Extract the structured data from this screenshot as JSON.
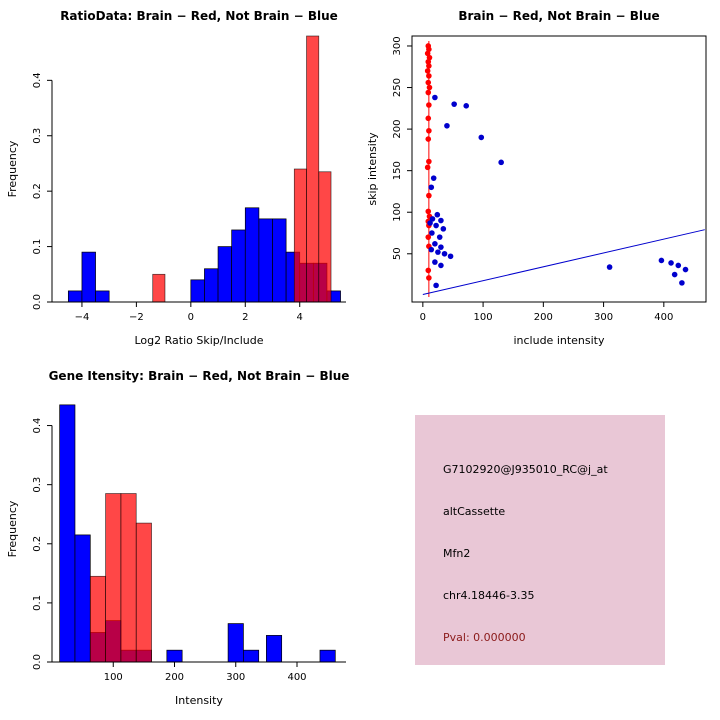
{
  "panels": {
    "info_box": {
      "bg": "#e9c7d6",
      "lines": [
        {
          "text": "G7102920@J935010_RC@j_at",
          "color": "#000000"
        },
        {
          "text": "altCassette",
          "color": "#000000"
        },
        {
          "text": "Mfn2",
          "color": "#000000"
        },
        {
          "text": "chr4.18446-3.35",
          "color": "#000000"
        },
        {
          "text": "Pval: 0.000000",
          "color": "#8b1a1a"
        }
      ]
    }
  },
  "chart_data": [
    {
      "type": "bar",
      "subtype": "histogram-overlay",
      "title": "RatioData: Brain − Red, Not Brain − Blue",
      "xlabel": "Log2 Ratio Skip/Include",
      "ylabel": "Frequency",
      "xlim": [
        -5.1,
        5.7
      ],
      "ylim": [
        0,
        0.48
      ],
      "xticks": [
        -4,
        -2,
        0,
        2,
        4
      ],
      "xticklabels": [
        "−4",
        "−2",
        "0",
        "2",
        "4"
      ],
      "yticks": [
        0,
        0.1,
        0.2,
        0.3,
        0.4
      ],
      "yticklabels": [
        "0.0",
        "0.1",
        "0.2",
        "0.3",
        "0.4"
      ],
      "grid": false,
      "legend": "none",
      "series": [
        {
          "name": "Not Brain",
          "color": "#0000ff",
          "opacity": 1,
          "bin_width": 0.5,
          "bins": [
            {
              "x": -4.5,
              "h": 0.02
            },
            {
              "x": -4.0,
              "h": 0.09
            },
            {
              "x": -3.5,
              "h": 0.02
            },
            {
              "x": 0.0,
              "h": 0.04
            },
            {
              "x": 0.5,
              "h": 0.06
            },
            {
              "x": 1.0,
              "h": 0.1
            },
            {
              "x": 1.5,
              "h": 0.13
            },
            {
              "x": 2.0,
              "h": 0.17
            },
            {
              "x": 2.5,
              "h": 0.15
            },
            {
              "x": 3.0,
              "h": 0.15
            },
            {
              "x": 3.5,
              "h": 0.09
            },
            {
              "x": 4.0,
              "h": 0.07
            },
            {
              "x": 4.5,
              "h": 0.07
            },
            {
              "x": 5.0,
              "h": 0.02
            }
          ]
        },
        {
          "name": "Brain",
          "color": "#ff0000",
          "opacity": 0.72,
          "bin_width": 0.45,
          "bins": [
            {
              "x": -1.4,
              "h": 0.05
            },
            {
              "x": 3.8,
              "h": 0.24
            },
            {
              "x": 4.25,
              "h": 0.48
            },
            {
              "x": 4.7,
              "h": 0.235
            }
          ]
        }
      ]
    },
    {
      "type": "scatter",
      "title": "Brain − Red, Not Brain − Blue",
      "xlabel": "include intensity",
      "ylabel": "skip intensity",
      "xlim": [
        -18,
        470
      ],
      "ylim": [
        -8,
        312
      ],
      "xticks": [
        0,
        100,
        200,
        300,
        400
      ],
      "xticklabels": [
        "0",
        "100",
        "200",
        "300",
        "400"
      ],
      "yticks": [
        50,
        100,
        150,
        200,
        250,
        300
      ],
      "yticklabels": [
        "50",
        "100",
        "150",
        "200",
        "250",
        "300"
      ],
      "grid": false,
      "box": true,
      "legend": "none",
      "lines": [
        {
          "name": "brain-vertical-line",
          "color": "#ff0000",
          "from": [
            10,
            -2
          ],
          "to": [
            10,
            306
          ]
        },
        {
          "name": "diagonal-line",
          "color": "#0000cd",
          "from": [
            0,
            1
          ],
          "to": [
            468,
            79
          ]
        }
      ],
      "series": [
        {
          "name": "Brain",
          "color": "#ff0000",
          "points": [
            [
              9,
              300
            ],
            [
              10,
              296
            ],
            [
              8,
              291
            ],
            [
              11,
              286
            ],
            [
              9,
              281
            ],
            [
              10,
              276
            ],
            [
              8,
              270
            ],
            [
              10,
              264
            ],
            [
              9,
              256
            ],
            [
              11,
              250
            ],
            [
              9,
              244
            ],
            [
              10,
              229
            ],
            [
              9,
              213
            ],
            [
              10,
              198
            ],
            [
              9,
              188
            ],
            [
              10,
              161
            ],
            [
              8,
              154
            ],
            [
              10,
              120
            ],
            [
              9,
              101
            ],
            [
              11,
              95
            ],
            [
              9,
              89
            ],
            [
              10,
              84
            ],
            [
              9,
              70
            ],
            [
              10,
              59
            ],
            [
              9,
              30
            ],
            [
              10,
              21
            ]
          ]
        },
        {
          "name": "Not Brain",
          "color": "#0000cd",
          "points": [
            [
              20,
              238
            ],
            [
              52,
              230
            ],
            [
              72,
              228
            ],
            [
              40,
              204
            ],
            [
              97,
              190
            ],
            [
              130,
              160
            ],
            [
              18,
              141
            ],
            [
              14,
              130
            ],
            [
              24,
              97
            ],
            [
              16,
              92
            ],
            [
              30,
              90
            ],
            [
              12,
              87
            ],
            [
              22,
              84
            ],
            [
              34,
              80
            ],
            [
              15,
              75
            ],
            [
              28,
              70
            ],
            [
              20,
              62
            ],
            [
              30,
              58
            ],
            [
              14,
              55
            ],
            [
              25,
              52
            ],
            [
              36,
              50
            ],
            [
              46,
              47
            ],
            [
              20,
              40
            ],
            [
              30,
              36
            ],
            [
              310,
              34
            ],
            [
              396,
              42
            ],
            [
              412,
              39
            ],
            [
              424,
              36
            ],
            [
              436,
              31
            ],
            [
              418,
              25
            ],
            [
              430,
              15
            ],
            [
              22,
              12
            ]
          ]
        }
      ]
    },
    {
      "type": "bar",
      "subtype": "histogram-overlay",
      "title": "Gene Itensity: Brain − Red, Not Brain − Blue",
      "xlabel": "Intensity",
      "ylabel": "Frequency",
      "xlim": [
        0,
        480
      ],
      "ylim": [
        0,
        0.45
      ],
      "xticks": [
        100,
        200,
        300,
        400
      ],
      "xticklabels": [
        "100",
        "200",
        "300",
        "400"
      ],
      "yticks": [
        0,
        0.1,
        0.2,
        0.3,
        0.4
      ],
      "yticklabels": [
        "0.0",
        "0.1",
        "0.2",
        "0.3",
        "0.4"
      ],
      "grid": false,
      "legend": "none",
      "series": [
        {
          "name": "Not Brain",
          "color": "#0000ff",
          "opacity": 1,
          "bin_width": 25,
          "bins": [
            {
              "x": 12.5,
              "h": 0.435
            },
            {
              "x": 37.5,
              "h": 0.215
            },
            {
              "x": 62.5,
              "h": 0.05
            },
            {
              "x": 87.5,
              "h": 0.07
            },
            {
              "x": 112.5,
              "h": 0.02
            },
            {
              "x": 137.5,
              "h": 0.02
            },
            {
              "x": 187.5,
              "h": 0.02
            },
            {
              "x": 287.5,
              "h": 0.065
            },
            {
              "x": 312.5,
              "h": 0.02
            },
            {
              "x": 350,
              "h": 0.045
            },
            {
              "x": 437.5,
              "h": 0.02
            }
          ]
        },
        {
          "name": "Brain",
          "color": "#ff0000",
          "opacity": 0.72,
          "bin_width": 25,
          "bins": [
            {
              "x": 62.5,
              "h": 0.145
            },
            {
              "x": 87.5,
              "h": 0.285
            },
            {
              "x": 112.5,
              "h": 0.285
            },
            {
              "x": 137.5,
              "h": 0.235
            }
          ]
        }
      ]
    }
  ]
}
